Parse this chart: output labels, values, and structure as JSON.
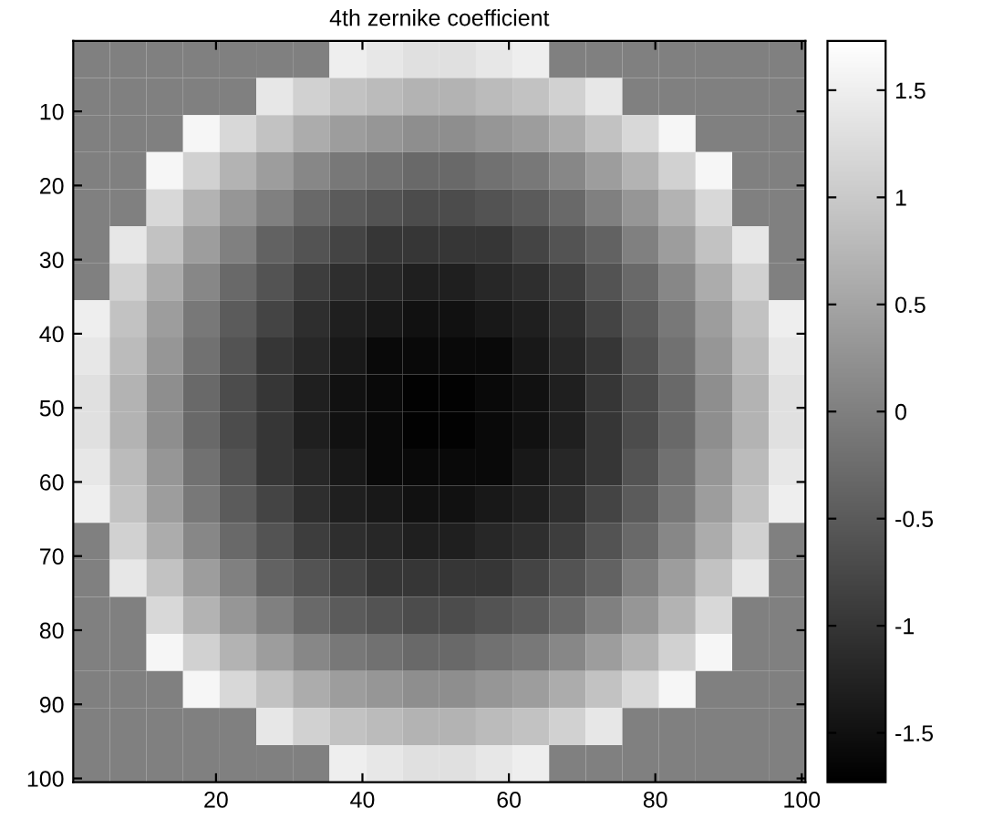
{
  "chart_data": {
    "type": "heatmap",
    "title": "4th zernike coefficient",
    "xlim": [
      0.5,
      100.5
    ],
    "ylim": [
      100.5,
      0.5
    ],
    "xticks": [
      20,
      40,
      60,
      80,
      100
    ],
    "yticks": [
      10,
      20,
      30,
      40,
      50,
      60,
      70,
      80,
      90,
      100
    ],
    "clim": [
      -1.73,
      1.73
    ],
    "cticks": [
      -1.5,
      -1,
      -0.5,
      0,
      0.5,
      1,
      1.5
    ],
    "cells": [
      [
        0.0,
        0.0,
        0.0,
        0.0,
        0.0,
        0.0,
        0.0,
        1.5,
        1.4,
        1.3,
        1.3,
        1.4,
        1.5,
        0.0,
        0.0,
        0.0,
        0.0,
        0.0,
        0.0,
        0.0
      ],
      [
        0.0,
        0.0,
        0.0,
        0.0,
        0.0,
        1.4,
        1.1,
        0.9,
        0.8,
        0.7,
        0.7,
        0.8,
        0.9,
        1.1,
        1.4,
        0.0,
        0.0,
        0.0,
        0.0,
        0.0
      ],
      [
        0.0,
        0.0,
        0.0,
        1.6,
        1.2,
        0.9,
        0.6,
        0.4,
        0.3,
        0.2,
        0.2,
        0.3,
        0.4,
        0.6,
        0.9,
        1.2,
        1.6,
        0.0,
        0.0,
        0.0
      ],
      [
        0.0,
        0.0,
        1.6,
        1.1,
        0.7,
        0.4,
        0.1,
        -0.1,
        -0.2,
        -0.3,
        -0.3,
        -0.2,
        -0.1,
        0.1,
        0.4,
        0.7,
        1.1,
        1.6,
        0.0,
        0.0
      ],
      [
        0.0,
        0.0,
        1.2,
        0.7,
        0.3,
        0.0,
        -0.3,
        -0.5,
        -0.6,
        -0.7,
        -0.7,
        -0.6,
        -0.5,
        -0.3,
        0.0,
        0.3,
        0.7,
        1.2,
        0.0,
        0.0
      ],
      [
        0.0,
        1.4,
        0.9,
        0.4,
        0.0,
        -0.4,
        -0.6,
        -0.8,
        -1.0,
        -1.0,
        -1.0,
        -1.0,
        -0.8,
        -0.6,
        -0.4,
        0.0,
        0.4,
        0.9,
        1.4,
        0.0
      ],
      [
        0.0,
        1.1,
        0.6,
        0.1,
        -0.3,
        -0.6,
        -0.9,
        -1.1,
        -1.2,
        -1.3,
        -1.3,
        -1.2,
        -1.1,
        -0.9,
        -0.6,
        -0.3,
        0.1,
        0.6,
        1.1,
        0.0
      ],
      [
        1.5,
        0.9,
        0.4,
        -0.1,
        -0.5,
        -0.8,
        -1.1,
        -1.3,
        -1.4,
        -1.5,
        -1.5,
        -1.4,
        -1.3,
        -1.1,
        -0.8,
        -0.5,
        -0.1,
        0.4,
        0.9,
        1.5
      ],
      [
        1.4,
        0.8,
        0.3,
        -0.2,
        -0.6,
        -1.0,
        -1.2,
        -1.4,
        -1.6,
        -1.6,
        -1.6,
        -1.6,
        -1.4,
        -1.2,
        -1.0,
        -0.6,
        -0.2,
        0.3,
        0.8,
        1.4
      ],
      [
        1.3,
        0.7,
        0.2,
        -0.3,
        -0.7,
        -1.0,
        -1.3,
        -1.5,
        -1.6,
        -1.7,
        -1.7,
        -1.6,
        -1.5,
        -1.3,
        -1.0,
        -0.7,
        -0.3,
        0.2,
        0.7,
        1.3
      ],
      [
        1.3,
        0.7,
        0.2,
        -0.3,
        -0.7,
        -1.0,
        -1.3,
        -1.5,
        -1.6,
        -1.7,
        -1.7,
        -1.6,
        -1.5,
        -1.3,
        -1.0,
        -0.7,
        -0.3,
        0.2,
        0.7,
        1.3
      ],
      [
        1.4,
        0.8,
        0.3,
        -0.2,
        -0.6,
        -1.0,
        -1.2,
        -1.4,
        -1.6,
        -1.6,
        -1.6,
        -1.6,
        -1.4,
        -1.2,
        -1.0,
        -0.6,
        -0.2,
        0.3,
        0.8,
        1.4
      ],
      [
        1.5,
        0.9,
        0.4,
        -0.1,
        -0.5,
        -0.8,
        -1.1,
        -1.3,
        -1.4,
        -1.5,
        -1.5,
        -1.4,
        -1.3,
        -1.1,
        -0.8,
        -0.5,
        -0.1,
        0.4,
        0.9,
        1.5
      ],
      [
        0.0,
        1.1,
        0.6,
        0.1,
        -0.3,
        -0.6,
        -0.9,
        -1.1,
        -1.2,
        -1.3,
        -1.3,
        -1.2,
        -1.1,
        -0.9,
        -0.6,
        -0.3,
        0.1,
        0.6,
        1.1,
        0.0
      ],
      [
        0.0,
        1.4,
        0.9,
        0.4,
        0.0,
        -0.4,
        -0.6,
        -0.8,
        -1.0,
        -1.0,
        -1.0,
        -1.0,
        -0.8,
        -0.6,
        -0.4,
        0.0,
        0.4,
        0.9,
        1.4,
        0.0
      ],
      [
        0.0,
        0.0,
        1.2,
        0.7,
        0.3,
        0.0,
        -0.3,
        -0.5,
        -0.6,
        -0.7,
        -0.7,
        -0.6,
        -0.5,
        -0.3,
        0.0,
        0.3,
        0.7,
        1.2,
        0.0,
        0.0
      ],
      [
        0.0,
        0.0,
        1.6,
        1.1,
        0.7,
        0.4,
        0.1,
        -0.1,
        -0.2,
        -0.3,
        -0.3,
        -0.2,
        -0.1,
        0.1,
        0.4,
        0.7,
        1.1,
        1.6,
        0.0,
        0.0
      ],
      [
        0.0,
        0.0,
        0.0,
        1.6,
        1.2,
        0.9,
        0.6,
        0.4,
        0.3,
        0.2,
        0.2,
        0.3,
        0.4,
        0.6,
        0.9,
        1.2,
        1.6,
        0.0,
        0.0,
        0.0
      ],
      [
        0.0,
        0.0,
        0.0,
        0.0,
        0.0,
        1.4,
        1.1,
        0.9,
        0.8,
        0.7,
        0.7,
        0.8,
        0.9,
        1.1,
        1.4,
        0.0,
        0.0,
        0.0,
        0.0,
        0.0
      ],
      [
        0.0,
        0.0,
        0.0,
        0.0,
        0.0,
        0.0,
        0.0,
        1.5,
        1.4,
        1.3,
        1.3,
        1.4,
        1.5,
        0.0,
        0.0,
        0.0,
        0.0,
        0.0,
        0.0,
        0.0
      ]
    ]
  }
}
